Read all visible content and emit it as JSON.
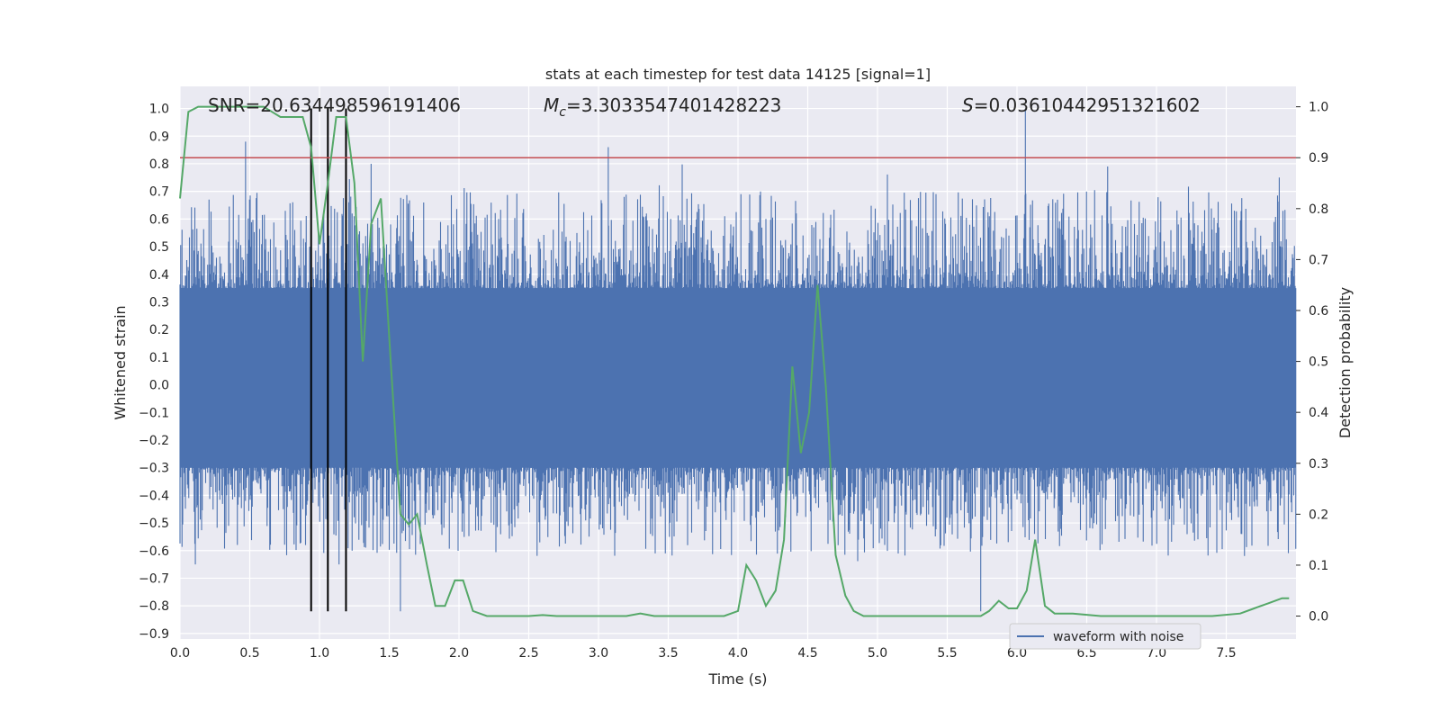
{
  "chart_data": {
    "type": "line",
    "title": "stats at each timestep for test data 14125 [signal=1]",
    "xlabel": "Time (s)",
    "ylabel_left": "Whitened strain",
    "ylabel_right": "Detection probability",
    "xlim": [
      0.0,
      8.0
    ],
    "ylim_left": [
      -0.92,
      1.08
    ],
    "ylim_right": [
      -0.045,
      1.04
    ],
    "x_ticks": [
      "0.0",
      "0.5",
      "1.0",
      "1.5",
      "2.0",
      "2.5",
      "3.0",
      "3.5",
      "4.0",
      "4.5",
      "5.0",
      "5.5",
      "6.0",
      "6.5",
      "7.0",
      "7.5"
    ],
    "y_ticks_left": [
      "1.0",
      "0.9",
      "0.8",
      "0.7",
      "0.6",
      "0.5",
      "0.4",
      "0.3",
      "0.2",
      "0.1",
      "0.0",
      "−0.1",
      "−0.2",
      "−0.3",
      "−0.4",
      "−0.5",
      "−0.6",
      "−0.7",
      "−0.8",
      "−0.9"
    ],
    "y_ticks_right": [
      "1.0",
      "0.9",
      "0.8",
      "0.7",
      "0.6",
      "0.5",
      "0.4",
      "0.3",
      "0.2",
      "0.1",
      "0.0"
    ],
    "grid": true,
    "legend_position": "lower-right",
    "annotations": {
      "snr": "SNR=20.634498596191406",
      "mc_symbol": "M",
      "mc_subscript": "c",
      "mc_value": "=3.3033547401428223",
      "s_symbol": "S",
      "s_value": "=0.03610442951321602"
    },
    "threshold_right": 0.9,
    "vertical_markers_x": [
      0.94,
      1.06,
      1.19
    ],
    "vertical_markers_yrange": [
      -0.82,
      1.0
    ],
    "series": [
      {
        "name": "waveform with noise",
        "axis": "left",
        "color": "#4c72b0",
        "description_values": {
          "band_min": -0.3,
          "band_max": 0.35,
          "spikes": [
            [
              0.47,
              0.88
            ],
            [
              0.11,
              -0.65
            ],
            [
              0.9,
              -0.58
            ],
            [
              1.14,
              -0.65
            ],
            [
              1.37,
              0.8
            ],
            [
              1.58,
              -0.82
            ],
            [
              3.07,
              0.86
            ],
            [
              5.74,
              -0.82
            ],
            [
              6.06,
              1.0
            ],
            [
              6.65,
              0.79
            ],
            [
              7.88,
              0.75
            ]
          ]
        }
      },
      {
        "name": "",
        "axis": "right",
        "color": "#55a868",
        "x": [
          0.0,
          0.06,
          0.13,
          0.2,
          0.3,
          0.4,
          0.5,
          0.6,
          0.66,
          0.72,
          0.8,
          0.88,
          0.94,
          1.0,
          1.06,
          1.12,
          1.19,
          1.25,
          1.31,
          1.37,
          1.44,
          1.51,
          1.58,
          1.64,
          1.7,
          1.77,
          1.83,
          1.9,
          1.97,
          2.03,
          2.1,
          2.2,
          2.3,
          2.4,
          2.5,
          2.6,
          2.7,
          2.8,
          2.9,
          3.0,
          3.1,
          3.2,
          3.3,
          3.4,
          3.5,
          3.6,
          3.7,
          3.8,
          3.9,
          4.0,
          4.06,
          4.13,
          4.2,
          4.27,
          4.33,
          4.39,
          4.45,
          4.51,
          4.57,
          4.63,
          4.7,
          4.77,
          4.83,
          4.9,
          5.0,
          5.2,
          5.4,
          5.6,
          5.74,
          5.8,
          5.87,
          5.94,
          6.0,
          6.07,
          6.13,
          6.2,
          6.27,
          6.4,
          6.6,
          6.8,
          7.0,
          7.2,
          7.4,
          7.6,
          7.7,
          7.8,
          7.9,
          7.95
        ],
        "y": [
          0.82,
          0.99,
          1.0,
          1.0,
          1.0,
          1.0,
          1.0,
          1.0,
          0.99,
          0.98,
          0.98,
          0.98,
          0.92,
          0.73,
          0.85,
          0.98,
          0.98,
          0.85,
          0.5,
          0.77,
          0.82,
          0.5,
          0.2,
          0.18,
          0.2,
          0.1,
          0.02,
          0.02,
          0.07,
          0.07,
          0.01,
          0.0,
          0.0,
          0.0,
          0.0,
          0.002,
          0.0,
          0.0,
          0.0,
          0.0,
          0.0,
          0.0,
          0.005,
          0.0,
          0.0,
          0.0,
          0.0,
          0.0,
          0.0,
          0.01,
          0.1,
          0.07,
          0.02,
          0.05,
          0.15,
          0.49,
          0.32,
          0.4,
          0.65,
          0.45,
          0.12,
          0.04,
          0.01,
          0.0,
          0.0,
          0.0,
          0.0,
          0.0,
          0.0,
          0.01,
          0.03,
          0.015,
          0.015,
          0.05,
          0.15,
          0.02,
          0.005,
          0.005,
          0.0,
          0.0,
          0.0,
          0.0,
          0.0,
          0.005,
          0.015,
          0.025,
          0.035,
          0.035
        ]
      }
    ]
  }
}
